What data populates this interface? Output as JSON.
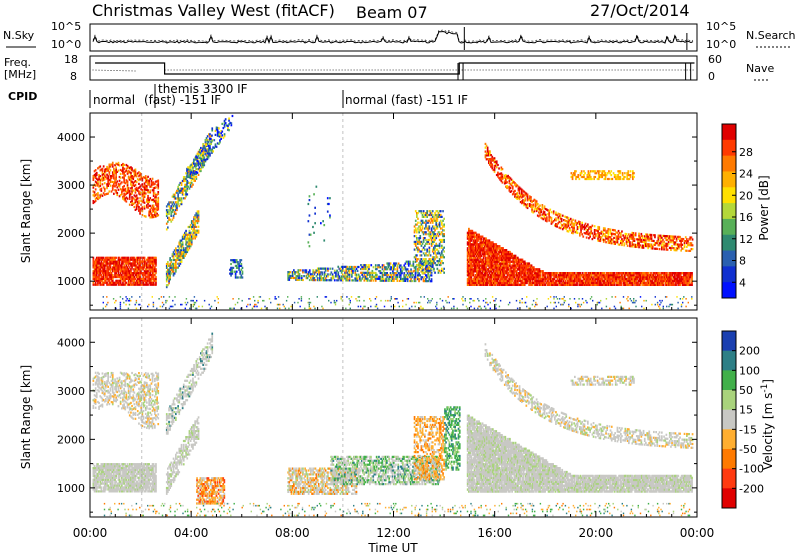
{
  "header": {
    "title": "Christmas Valley West (fitACF)",
    "beam": "Beam 07",
    "date": "27/Oct/2014"
  },
  "noise_panel": {
    "left_label": "N.Sky",
    "right_label": "N.Search",
    "ytick_top": "10^5",
    "ytick_bottom": "10^0"
  },
  "freq_panel": {
    "label_line1": "Freq.",
    "label_line2": "[MHz]",
    "yticks_left": [
      "18",
      "8"
    ],
    "yticks_right": [
      "60",
      "0"
    ],
    "right_label": "Nave"
  },
  "cpid": {
    "label": "CPID",
    "segments": [
      "normal",
      "themis 3300 IF",
      "(fast) -151 IF",
      "normal (fast) -151 IF"
    ]
  },
  "chart_data": [
    {
      "type": "heatmap",
      "name": "power",
      "ylabel": "Slant Range [km]",
      "yticks": [
        "1000",
        "2000",
        "3000",
        "4000"
      ],
      "ylim": [
        400,
        4500
      ],
      "xlim": [
        0,
        24
      ],
      "colorbar": {
        "label": "Power [dB]",
        "ticks": [
          "28",
          "24",
          "20",
          "16",
          "12",
          "8",
          "4"
        ],
        "colors": [
          "#e00000",
          "#ff3a00",
          "#ff7a00",
          "#ffb000",
          "#ffe000",
          "#b4d83a",
          "#58b058",
          "#2f8a70",
          "#2a60b0",
          "#1030d0",
          "#0010ff"
        ]
      }
    },
    {
      "type": "heatmap",
      "name": "velocity",
      "ylabel": "Slant Range [km]",
      "yticks": [
        "1000",
        "2000",
        "3000",
        "4000"
      ],
      "ylim": [
        400,
        4500
      ],
      "xlim": [
        0,
        24
      ],
      "colorbar": {
        "label": "Velocity [m s",
        "label_sup": "-1",
        "label_end": "]",
        "ticks": [
          "200",
          "100",
          "50",
          "15",
          "-15",
          "-50",
          "-100",
          "-200"
        ],
        "colors": [
          "#1a3fb0",
          "#2d7f86",
          "#41b04a",
          "#a9d37c",
          "#c8c8c4",
          "#ffae30",
          "#ff7a00",
          "#ff3a10",
          "#e00000"
        ]
      }
    }
  ],
  "xaxis": {
    "ticks": [
      "00:00",
      "04:00",
      "08:00",
      "12:00",
      "16:00",
      "20:00",
      "00:00"
    ],
    "label": "Time UT"
  }
}
